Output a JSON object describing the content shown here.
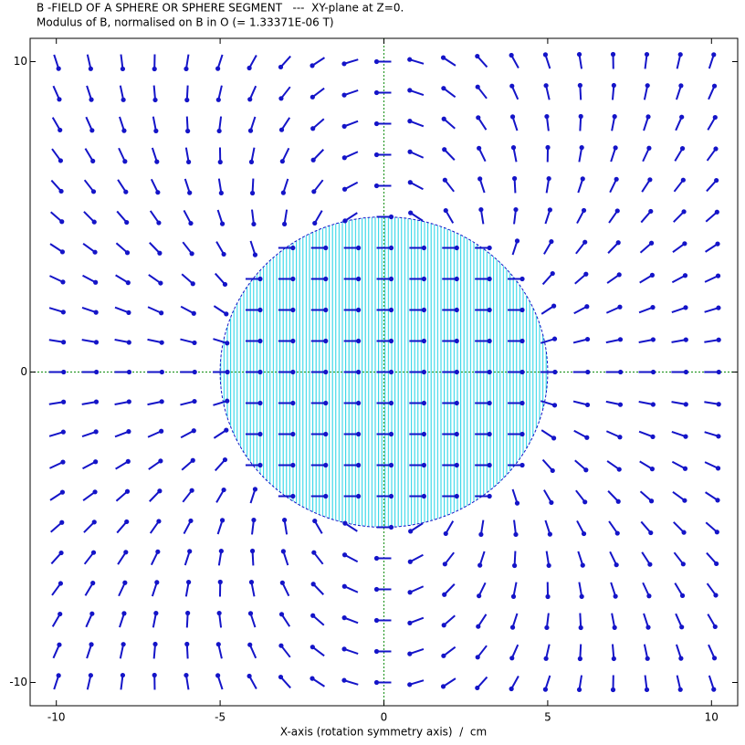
{
  "chart_data": {
    "type": "quiver",
    "title": "B -FIELD OF A SPHERE OR SPHERE SEGMENT   ---  XY-plane at Z=0.",
    "subtitle": "Modulus of B, normalised on B in O (= 1.33371E-06 T)",
    "xlabel": "X-axis (rotation symmetry axis)  /  cm",
    "x": [
      -10,
      -9,
      -8,
      -7,
      -6,
      -5,
      -4,
      -3,
      -2,
      -1,
      0,
      1,
      2,
      3,
      4,
      5,
      6,
      7,
      8,
      9,
      10
    ],
    "y": [
      10,
      9,
      8,
      7,
      6,
      5,
      4,
      3,
      2,
      1,
      0,
      -1,
      -2,
      -3,
      -4,
      -5,
      -6,
      -7,
      -8,
      -9,
      -10
    ],
    "angles": [
      [
        -72,
        -77,
        -83,
        -91,
        -99,
        -108,
        -119,
        -132,
        -147,
        -163,
        180,
        163,
        147,
        132,
        119,
        108,
        99,
        91,
        83,
        77,
        72
      ],
      [
        -66,
        -72,
        -78,
        -85,
        -93,
        -103,
        -114,
        -128,
        -143,
        -161,
        180,
        161,
        143,
        128,
        114,
        103,
        93,
        85,
        78,
        72,
        66
      ],
      [
        -60,
        -66,
        -72,
        -79,
        -87,
        -97,
        -108,
        -123,
        -139,
        -159,
        180,
        159,
        139,
        123,
        108,
        97,
        87,
        79,
        72,
        66,
        60
      ],
      [
        -54,
        -59,
        -65,
        -72,
        -80,
        -89,
        -101,
        -116,
        -134,
        -156,
        180,
        156,
        134,
        116,
        101,
        89,
        80,
        72,
        65,
        59,
        54
      ],
      [
        -48,
        -52,
        -57,
        -64,
        -72,
        -81,
        -93,
        -108,
        -128,
        -152,
        180,
        152,
        128,
        108,
        93,
        81,
        72,
        64,
        57,
        52,
        48
      ],
      [
        -41,
        -45,
        -49,
        -55,
        -62,
        -72,
        -83,
        -99,
        -120,
        -147,
        0,
        147,
        120,
        99,
        83,
        72,
        62,
        55,
        49,
        45,
        41
      ],
      [
        -33,
        -36,
        -41,
        -46,
        -52,
        -60,
        -72,
        0,
        0,
        0,
        0,
        0,
        0,
        0,
        72,
        60,
        52,
        46,
        41,
        36,
        33
      ],
      [
        -25,
        -28,
        -31,
        -35,
        -41,
        -48,
        0,
        0,
        0,
        0,
        0,
        0,
        0,
        0,
        0,
        48,
        41,
        35,
        31,
        28,
        25
      ],
      [
        -17,
        -19,
        -21,
        -24,
        -28,
        -33,
        0,
        0,
        0,
        0,
        0,
        0,
        0,
        0,
        0,
        33,
        28,
        24,
        21,
        19,
        17
      ],
      [
        -9,
        -10,
        -11,
        -12,
        -14,
        -17,
        0,
        0,
        0,
        0,
        0,
        0,
        0,
        0,
        0,
        17,
        14,
        12,
        11,
        10,
        9
      ],
      [
        0,
        0,
        0,
        0,
        0,
        0,
        0,
        0,
        0,
        0,
        0,
        0,
        0,
        0,
        0,
        0,
        0,
        0,
        0,
        0,
        0
      ],
      [
        9,
        10,
        11,
        12,
        14,
        17,
        0,
        0,
        0,
        0,
        0,
        0,
        0,
        0,
        0,
        -17,
        -14,
        -12,
        -11,
        -10,
        -9
      ],
      [
        17,
        19,
        21,
        24,
        28,
        33,
        0,
        0,
        0,
        0,
        0,
        0,
        0,
        0,
        0,
        -33,
        -28,
        -24,
        -21,
        -19,
        -17
      ],
      [
        25,
        28,
        31,
        35,
        41,
        48,
        0,
        0,
        0,
        0,
        0,
        0,
        0,
        0,
        0,
        -48,
        -41,
        -35,
        -31,
        -28,
        -25
      ],
      [
        33,
        36,
        41,
        46,
        52,
        60,
        72,
        0,
        0,
        0,
        0,
        0,
        0,
        0,
        -72,
        -60,
        -52,
        -46,
        -41,
        -36,
        -33
      ],
      [
        41,
        45,
        49,
        55,
        62,
        72,
        83,
        99,
        120,
        147,
        0,
        -147,
        -120,
        -99,
        -83,
        -72,
        -62,
        -55,
        -49,
        -45,
        -41
      ],
      [
        48,
        52,
        57,
        64,
        72,
        81,
        93,
        108,
        128,
        152,
        180,
        -152,
        -128,
        -108,
        -93,
        -81,
        -72,
        -64,
        -57,
        -52,
        -48
      ],
      [
        54,
        59,
        65,
        72,
        80,
        89,
        101,
        116,
        134,
        156,
        180,
        -156,
        -134,
        -116,
        -101,
        -89,
        -80,
        -72,
        -65,
        -59,
        -54
      ],
      [
        60,
        66,
        72,
        79,
        87,
        97,
        108,
        123,
        139,
        159,
        180,
        -159,
        -139,
        -123,
        -108,
        -97,
        -87,
        -79,
        -72,
        -66,
        -60
      ],
      [
        66,
        72,
        78,
        85,
        93,
        103,
        114,
        128,
        143,
        161,
        180,
        -161,
        -143,
        -128,
        -114,
        -103,
        -93,
        -85,
        -78,
        -72,
        -66
      ],
      [
        72,
        77,
        83,
        91,
        99,
        108,
        119,
        132,
        147,
        163,
        180,
        -163,
        -147,
        -132,
        -119,
        -108,
        -99,
        -91,
        -83,
        -77,
        -72
      ]
    ],
    "color": "#1414c8",
    "sphere": {
      "radius": 5,
      "color": "#1ed2e6"
    },
    "xlim": [
      -10.8,
      10.8
    ],
    "ylim": [
      -10.75,
      10.75
    ],
    "xticks": [
      -10,
      -5,
      0,
      5,
      10
    ],
    "yticks": [
      -10,
      0,
      10
    ],
    "zero_lines": true
  }
}
